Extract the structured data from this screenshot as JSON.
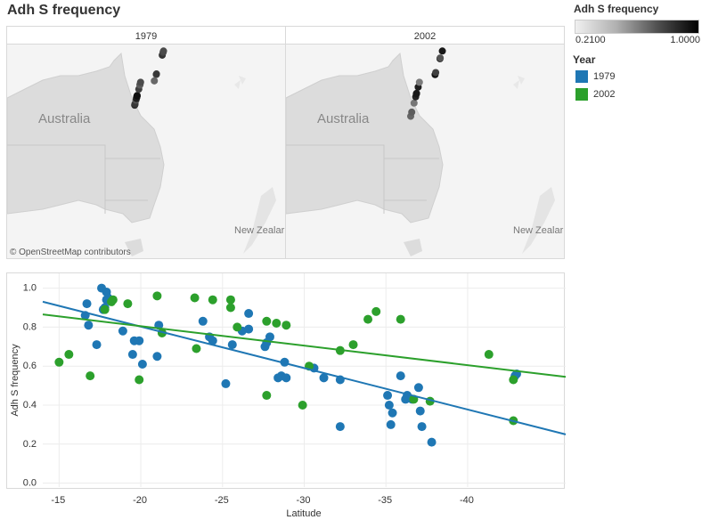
{
  "title": "Adh S frequency",
  "legend": {
    "color_title": "Adh S frequency",
    "min_label": "0.2100",
    "max_label": "1.0000",
    "year_title": "Year",
    "years": [
      {
        "label": "1979",
        "color": "#1f77b4"
      },
      {
        "label": "2002",
        "color": "#2ca02c"
      }
    ]
  },
  "maps": {
    "panels": [
      {
        "label": "1979"
      },
      {
        "label": "2002"
      }
    ],
    "country_label": "Australia",
    "nz_label": "New Zealar",
    "attribution": "© OpenStreetMap contributors"
  },
  "chart_data": {
    "type": "scatter",
    "xlabel": "Latitude",
    "ylabel": "Adh S frequency",
    "xlim": [
      -14,
      -46
    ],
    "ylim": [
      -0.02,
      1.03
    ],
    "xticks": [
      -15,
      -20,
      -25,
      -30,
      -35,
      -40
    ],
    "yticks": [
      0.0,
      0.2,
      0.4,
      0.6,
      0.8,
      1.0
    ],
    "series": [
      {
        "name": "1979",
        "color": "#1f77b4",
        "trend": [
          [
            -14,
            0.93
          ],
          [
            -46,
            0.25
          ]
        ],
        "points": [
          [
            -16.7,
            0.92
          ],
          [
            -16.6,
            0.86
          ],
          [
            -16.8,
            0.81
          ],
          [
            -17.3,
            0.71
          ],
          [
            -17.6,
            1.0
          ],
          [
            -17.7,
            0.89
          ],
          [
            -17.8,
            0.9
          ],
          [
            -17.9,
            0.94
          ],
          [
            -18.0,
            0.95
          ],
          [
            -17.9,
            0.98
          ],
          [
            -18.9,
            0.78
          ],
          [
            -19.6,
            0.73
          ],
          [
            -19.5,
            0.66
          ],
          [
            -19.9,
            0.73
          ],
          [
            -20.1,
            0.61
          ],
          [
            -21.0,
            0.65
          ],
          [
            -21.1,
            0.81
          ],
          [
            -23.8,
            0.83
          ],
          [
            -24.2,
            0.75
          ],
          [
            -24.4,
            0.73
          ],
          [
            -25.2,
            0.51
          ],
          [
            -25.6,
            0.71
          ],
          [
            -26.2,
            0.78
          ],
          [
            -26.6,
            0.79
          ],
          [
            -26.6,
            0.87
          ],
          [
            -27.6,
            0.7
          ],
          [
            -27.7,
            0.72
          ],
          [
            -27.9,
            0.75
          ],
          [
            -28.4,
            0.54
          ],
          [
            -28.6,
            0.55
          ],
          [
            -28.8,
            0.62
          ],
          [
            -28.9,
            0.54
          ],
          [
            -30.6,
            0.59
          ],
          [
            -31.2,
            0.54
          ],
          [
            -32.2,
            0.29
          ],
          [
            -32.2,
            0.53
          ],
          [
            -35.1,
            0.45
          ],
          [
            -35.2,
            0.4
          ],
          [
            -35.3,
            0.3
          ],
          [
            -35.4,
            0.36
          ],
          [
            -35.9,
            0.55
          ],
          [
            -36.2,
            0.43
          ],
          [
            -36.3,
            0.45
          ],
          [
            -36.6,
            0.43
          ],
          [
            -37.0,
            0.49
          ],
          [
            -37.1,
            0.37
          ],
          [
            -37.2,
            0.29
          ],
          [
            -37.8,
            0.21
          ],
          [
            -42.9,
            0.55
          ],
          [
            -43.0,
            0.56
          ]
        ]
      },
      {
        "name": "2002",
        "color": "#2ca02c",
        "trend": [
          [
            -14,
            0.865
          ],
          [
            -46,
            0.545
          ]
        ],
        "points": [
          [
            -15.0,
            0.62
          ],
          [
            -15.6,
            0.66
          ],
          [
            -16.9,
            0.55
          ],
          [
            -17.8,
            0.89
          ],
          [
            -18.2,
            0.93
          ],
          [
            -18.3,
            0.94
          ],
          [
            -19.2,
            0.92
          ],
          [
            -19.9,
            0.53
          ],
          [
            -21.0,
            0.96
          ],
          [
            -21.3,
            0.77
          ],
          [
            -23.3,
            0.95
          ],
          [
            -23.4,
            0.69
          ],
          [
            -24.4,
            0.94
          ],
          [
            -25.5,
            0.94
          ],
          [
            -25.5,
            0.9
          ],
          [
            -25.9,
            0.8
          ],
          [
            -27.7,
            0.83
          ],
          [
            -27.7,
            0.45
          ],
          [
            -28.3,
            0.82
          ],
          [
            -28.9,
            0.81
          ],
          [
            -29.9,
            0.4
          ],
          [
            -30.3,
            0.6
          ],
          [
            -32.2,
            0.68
          ],
          [
            -33.0,
            0.71
          ],
          [
            -33.9,
            0.84
          ],
          [
            -34.4,
            0.88
          ],
          [
            -35.9,
            0.84
          ],
          [
            -36.7,
            0.43
          ],
          [
            -37.7,
            0.42
          ],
          [
            -41.3,
            0.66
          ],
          [
            -42.8,
            0.53
          ],
          [
            -42.8,
            0.32
          ]
        ]
      }
    ]
  }
}
